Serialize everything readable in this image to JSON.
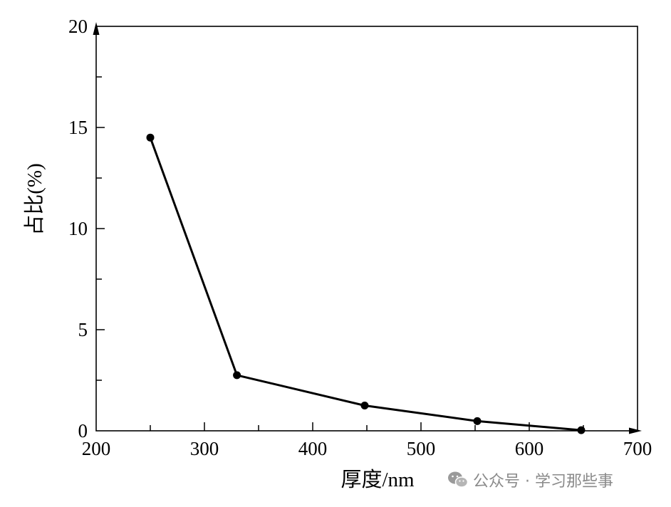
{
  "chart_data": {
    "type": "line",
    "title": "",
    "xlabel": "厚度/nm",
    "ylabel": "占比(%)",
    "xlim": [
      200,
      700
    ],
    "ylim": [
      0,
      20
    ],
    "x_ticks": [
      "200",
      "300",
      "400",
      "500",
      "600",
      "700"
    ],
    "y_ticks": [
      "0",
      "5",
      "10",
      "15",
      "20"
    ],
    "grid": false,
    "legend": "none",
    "series": [
      {
        "x": [
          250,
          330,
          448,
          552,
          648
        ],
        "y": [
          14.5,
          2.75,
          1.25,
          0.48,
          0.03
        ]
      }
    ],
    "colors": {
      "line": "#000000",
      "axis": "#000000"
    }
  },
  "watermark": {
    "icon": "wechat-icon",
    "text": "公众号 · 学习那些事"
  }
}
